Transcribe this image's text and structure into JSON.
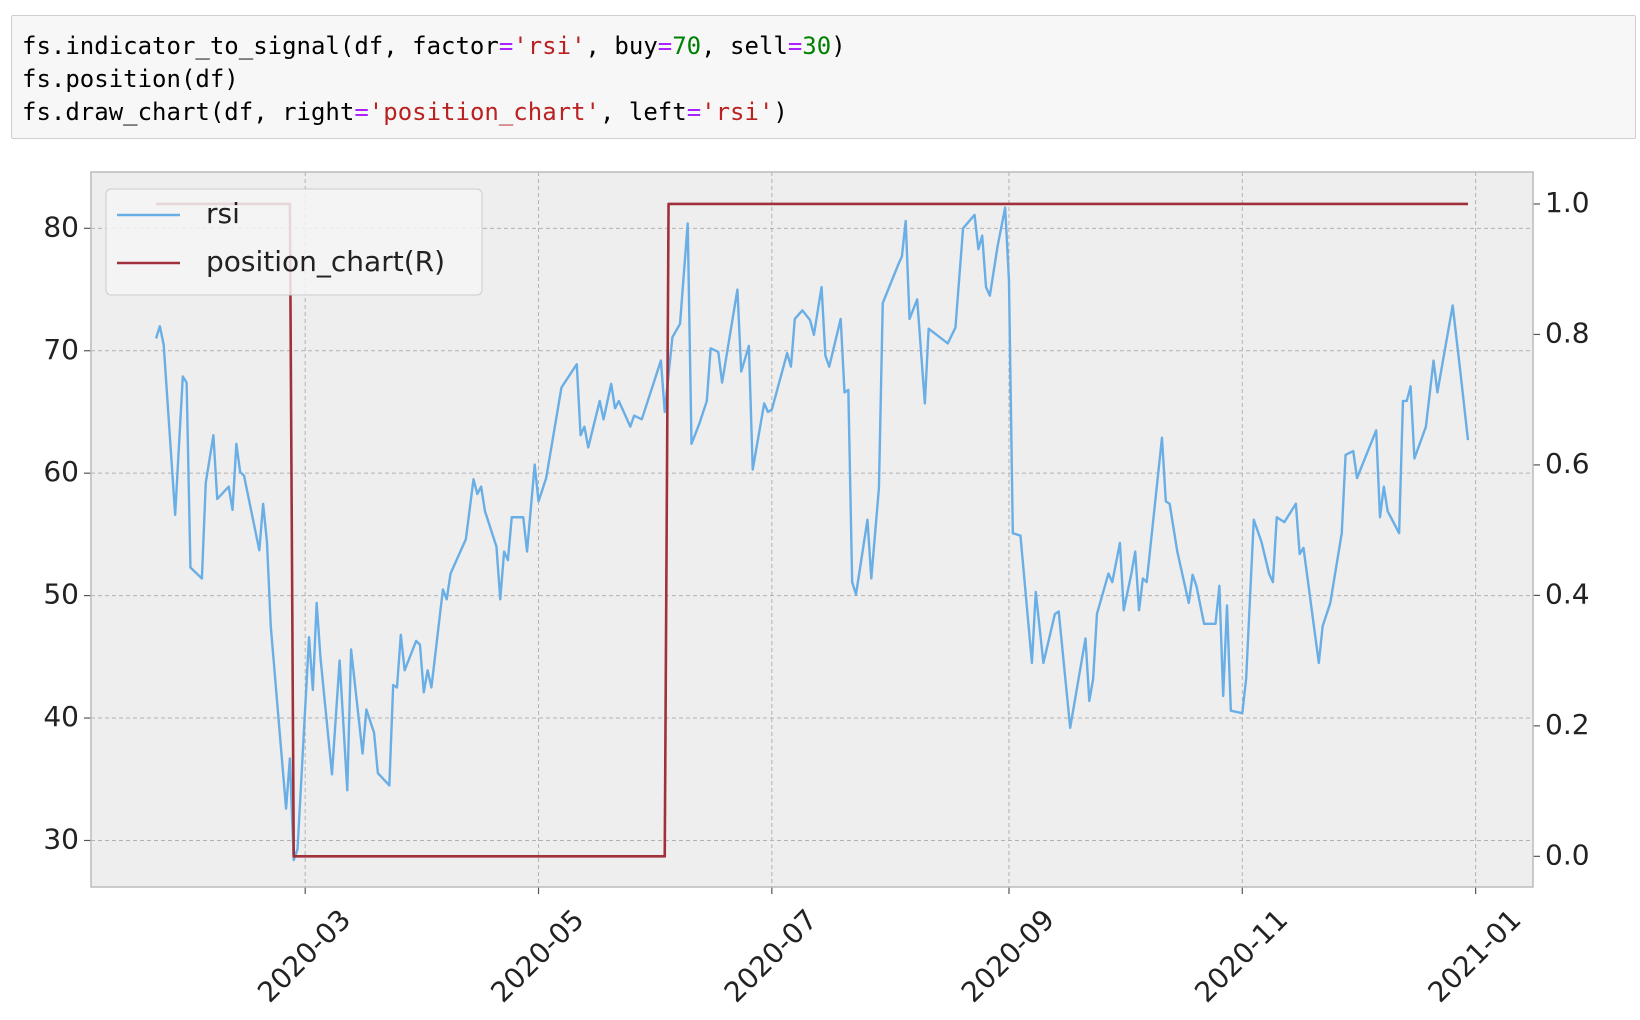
{
  "code": {
    "lines": [
      "fs.indicator_to_signal(df, factor='rsi', buy=70, sell=30)",
      "fs.position(df)",
      "fs.draw_chart(df, right='position_chart', left='rsi')"
    ]
  },
  "chart_data": {
    "type": "line",
    "xlim": [
      "2020-01-05",
      "2021-01-16"
    ],
    "xticks": [
      {
        "value": "2020-03-01",
        "label": "2020-03"
      },
      {
        "value": "2020-05-01",
        "label": "2020-05"
      },
      {
        "value": "2020-07-01",
        "label": "2020-07"
      },
      {
        "value": "2020-09-01",
        "label": "2020-09"
      },
      {
        "value": "2020-11-01",
        "label": "2020-11"
      },
      {
        "value": "2021-01-01",
        "label": "2021-01"
      }
    ],
    "ylim": [
      26.2,
      84.6
    ],
    "yticks": [
      30,
      40,
      50,
      60,
      70,
      80
    ],
    "y2lim": [
      -0.047,
      1.049
    ],
    "y2ticks": [
      {
        "value": 0,
        "label": "0.0"
      },
      0.2,
      0.4,
      0.6,
      0.8,
      {
        "value": 1,
        "label": "1.0"
      }
    ],
    "grid": true,
    "legend": "upper left",
    "series": [
      {
        "name": "rsi",
        "color": "#6aaee6",
        "axis": "y",
        "x": [
          "2020-01-22",
          "2020-01-23",
          "2020-01-24",
          "2020-01-27",
          "2020-01-29",
          "2020-01-30",
          "2020-01-31",
          "2020-02-03",
          "2020-02-04",
          "2020-02-06",
          "2020-02-07",
          "2020-02-10",
          "2020-02-11",
          "2020-02-12",
          "2020-02-13",
          "2020-02-14",
          "2020-02-18",
          "2020-02-19",
          "2020-02-20",
          "2020-02-21",
          "2020-02-25",
          "2020-02-26",
          "2020-02-27",
          "2020-02-28",
          "2020-03-02",
          "2020-03-03",
          "2020-03-04",
          "2020-03-05",
          "2020-03-08",
          "2020-03-10",
          "2020-03-12",
          "2020-03-13",
          "2020-03-16",
          "2020-03-17",
          "2020-03-19",
          "2020-03-20",
          "2020-03-23",
          "2020-03-24",
          "2020-03-25",
          "2020-03-26",
          "2020-03-27",
          "2020-03-30",
          "2020-03-31",
          "2020-04-01",
          "2020-04-02",
          "2020-04-03",
          "2020-04-06",
          "2020-04-07",
          "2020-04-08",
          "2020-04-12",
          "2020-04-14",
          "2020-04-15",
          "2020-04-16",
          "2020-04-17",
          "2020-04-20",
          "2020-04-21",
          "2020-04-22",
          "2020-04-23",
          "2020-04-24",
          "2020-04-27",
          "2020-04-28",
          "2020-04-30",
          "2020-05-01",
          "2020-05-03",
          "2020-05-07",
          "2020-05-11",
          "2020-05-12",
          "2020-05-13",
          "2020-05-14",
          "2020-05-17",
          "2020-05-18",
          "2020-05-20",
          "2020-05-21",
          "2020-05-22",
          "2020-05-25",
          "2020-05-26",
          "2020-05-28",
          "2020-06-02",
          "2020-06-03",
          "2020-06-05",
          "2020-06-07",
          "2020-06-09",
          "2020-06-10",
          "2020-06-12",
          "2020-06-14",
          "2020-06-15",
          "2020-06-17",
          "2020-06-18",
          "2020-06-22",
          "2020-06-23",
          "2020-06-25",
          "2020-06-26",
          "2020-06-29",
          "2020-06-30",
          "2020-07-01",
          "2020-07-05",
          "2020-07-06",
          "2020-07-07",
          "2020-07-09",
          "2020-07-11",
          "2020-07-12",
          "2020-07-14",
          "2020-07-15",
          "2020-07-16",
          "2020-07-19",
          "2020-07-20",
          "2020-07-21",
          "2020-07-22",
          "2020-07-23",
          "2020-07-26",
          "2020-07-27",
          "2020-07-29",
          "2020-07-30",
          "2020-08-03",
          "2020-08-04",
          "2020-08-05",
          "2020-08-06",
          "2020-08-08",
          "2020-08-10",
          "2020-08-11",
          "2020-08-16",
          "2020-08-18",
          "2020-08-20",
          "2020-08-23",
          "2020-08-24",
          "2020-08-25",
          "2020-08-26",
          "2020-08-27",
          "2020-08-29",
          "2020-08-31",
          "2020-09-01",
          "2020-09-02",
          "2020-09-04",
          "2020-09-07",
          "2020-09-08",
          "2020-09-10",
          "2020-09-13",
          "2020-09-14",
          "2020-09-17",
          "2020-09-21",
          "2020-09-22",
          "2020-09-23",
          "2020-09-24",
          "2020-09-27",
          "2020-09-28",
          "2020-09-30",
          "2020-10-01",
          "2020-10-03",
          "2020-10-04",
          "2020-10-05",
          "2020-10-06",
          "2020-10-07",
          "2020-10-11",
          "2020-10-12",
          "2020-10-13",
          "2020-10-15",
          "2020-10-18",
          "2020-10-19",
          "2020-10-20",
          "2020-10-22",
          "2020-10-25",
          "2020-10-26",
          "2020-10-27",
          "2020-10-28",
          "2020-10-29",
          "2020-11-01",
          "2020-11-02",
          "2020-11-04",
          "2020-11-06",
          "2020-11-08",
          "2020-11-09",
          "2020-11-10",
          "2020-11-12",
          "2020-11-15",
          "2020-11-16",
          "2020-11-17",
          "2020-11-21",
          "2020-11-22",
          "2020-11-24",
          "2020-11-27",
          "2020-11-28",
          "2020-11-30",
          "2020-12-01",
          "2020-12-06",
          "2020-12-07",
          "2020-12-08",
          "2020-12-09",
          "2020-12-12",
          "2020-12-13",
          "2020-12-14",
          "2020-12-15",
          "2020-12-16",
          "2020-12-19",
          "2020-12-21",
          "2020-12-22",
          "2020-12-26",
          "2020-12-28",
          "2020-12-30"
        ],
        "values": [
          71.0,
          72.0,
          70.5,
          56.6,
          67.9,
          67.4,
          52.3,
          51.4,
          59.2,
          63.1,
          57.9,
          58.9,
          57.0,
          62.4,
          60.1,
          59.8,
          53.7,
          57.5,
          54.4,
          47.5,
          32.6,
          36.7,
          28.4,
          29.3,
          46.6,
          42.3,
          49.4,
          44.9,
          35.4,
          44.7,
          34.1,
          45.6,
          37.1,
          40.7,
          38.8,
          35.5,
          34.5,
          42.7,
          42.5,
          46.8,
          43.9,
          46.3,
          46.0,
          42.1,
          43.9,
          42.5,
          50.5,
          49.7,
          51.8,
          54.6,
          59.5,
          58.3,
          58.9,
          56.9,
          54.0,
          49.7,
          53.6,
          52.9,
          56.4,
          56.4,
          53.6,
          60.7,
          57.7,
          59.6,
          67.0,
          68.9,
          63.1,
          63.8,
          62.1,
          65.9,
          64.4,
          67.3,
          65.3,
          65.9,
          63.8,
          64.7,
          64.4,
          69.2,
          65.0,
          71.1,
          72.2,
          80.4,
          62.4,
          64.0,
          65.9,
          70.2,
          69.9,
          67.4,
          75.0,
          68.3,
          70.4,
          60.3,
          65.7,
          65.0,
          65.2,
          69.8,
          68.7,
          72.6,
          73.3,
          72.5,
          71.3,
          75.2,
          69.6,
          68.7,
          72.6,
          66.6,
          66.8,
          51.1,
          50.1,
          56.2,
          51.4,
          58.8,
          73.9,
          77.0,
          77.7,
          80.6,
          72.6,
          74.2,
          65.7,
          71.8,
          70.6,
          71.9,
          80.0,
          81.1,
          78.3,
          79.4,
          75.2,
          74.5,
          78.5,
          81.7,
          75.7,
          55.1,
          54.9,
          44.5,
          50.3,
          44.5,
          48.5,
          48.7,
          39.2,
          46.5,
          41.4,
          43.2,
          48.5,
          51.8,
          51.1,
          54.3,
          48.8,
          51.8,
          53.6,
          48.8,
          51.4,
          51.1,
          62.9,
          57.7,
          57.5,
          53.6,
          49.4,
          51.7,
          50.8,
          47.7,
          47.7,
          50.8,
          41.8,
          49.2,
          40.6,
          40.4,
          43.2,
          56.2,
          54.4,
          51.8,
          51.1,
          56.4,
          56.0,
          57.5,
          53.4,
          53.9,
          44.5,
          47.5,
          49.4,
          55.1,
          61.5,
          61.8,
          59.6,
          63.5,
          56.4,
          58.9,
          56.9,
          55.1,
          65.9,
          65.9,
          67.1,
          61.2,
          63.8,
          69.2,
          66.6,
          73.7,
          68.3,
          62.7
        ]
      },
      {
        "name": "position_chart(R)",
        "color": "#a0303a",
        "axis": "y2",
        "x": [
          "2020-01-22",
          "2020-02-26",
          "2020-02-27",
          "2020-06-03",
          "2020-06-04",
          "2020-12-30"
        ],
        "values": [
          1,
          1,
          0,
          0,
          1,
          1
        ]
      }
    ]
  }
}
